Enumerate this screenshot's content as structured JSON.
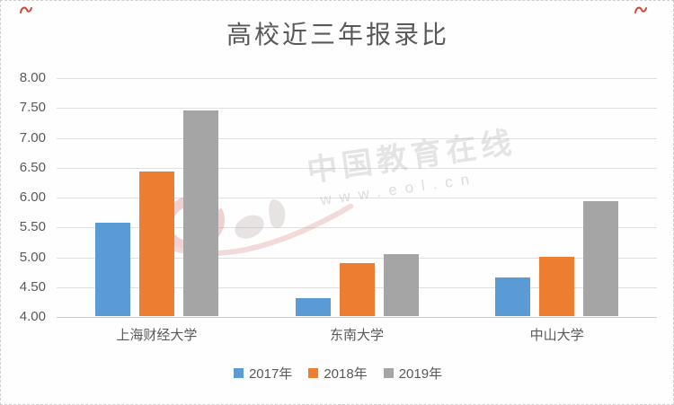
{
  "chart_data": {
    "type": "bar",
    "title": "高校近三年报录比",
    "categories": [
      "上海财经大学",
      "东南大学",
      "中山大学"
    ],
    "series": [
      {
        "name": "2017年",
        "color": "#5B9BD5",
        "values": [
          5.56,
          4.3,
          4.65
        ]
      },
      {
        "name": "2018年",
        "color": "#ED7D31",
        "values": [
          6.42,
          4.89,
          5.0
        ]
      },
      {
        "name": "2019年",
        "color": "#A5A5A5",
        "values": [
          7.45,
          5.04,
          5.92
        ]
      }
    ],
    "ylim": [
      4.0,
      8.0
    ],
    "ytick_step": 0.5,
    "ytick_labels": [
      "8.00",
      "7.50",
      "7.00",
      "6.50",
      "6.00",
      "5.50",
      "5.00",
      "4.50",
      "4.00"
    ],
    "grid": true,
    "legend_position": "bottom"
  },
  "watermark": {
    "brand": "中国教育在线",
    "url": "www.eol.cn",
    "logo_name": "eol-logo"
  },
  "colors": {
    "title_text": "#595959",
    "axis_text": "#595959",
    "gridline": "#e0e0e0",
    "baseline": "#c9c9c9",
    "corner_mark": "#cc3322",
    "watermark_red": "#d46a6a",
    "watermark_gray": "#b4a6a6"
  }
}
